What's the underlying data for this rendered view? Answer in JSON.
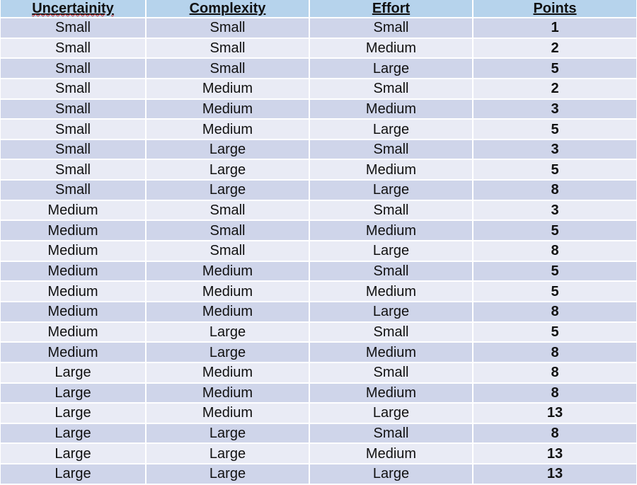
{
  "table": {
    "headers": [
      "Uncertainity",
      "Complexity",
      "Effort",
      "Points"
    ],
    "rows": [
      [
        "Small",
        "Small",
        "Small",
        "1"
      ],
      [
        "Small",
        "Small",
        "Medium",
        "2"
      ],
      [
        "Small",
        "Small",
        "Large",
        "5"
      ],
      [
        "Small",
        "Medium",
        "Small",
        "2"
      ],
      [
        "Small",
        "Medium",
        "Medium",
        "3"
      ],
      [
        "Small",
        "Medium",
        "Large",
        "5"
      ],
      [
        "Small",
        "Large",
        "Small",
        "3"
      ],
      [
        "Small",
        "Large",
        "Medium",
        "5"
      ],
      [
        "Small",
        "Large",
        "Large",
        "8"
      ],
      [
        "Medium",
        "Small",
        "Small",
        "3"
      ],
      [
        "Medium",
        "Small",
        "Medium",
        "5"
      ],
      [
        "Medium",
        "Small",
        "Large",
        "8"
      ],
      [
        "Medium",
        "Medium",
        "Small",
        "5"
      ],
      [
        "Medium",
        "Medium",
        "Medium",
        "5"
      ],
      [
        "Medium",
        "Medium",
        "Large",
        "8"
      ],
      [
        "Medium",
        "Large",
        "Small",
        "5"
      ],
      [
        "Medium",
        "Large",
        "Medium",
        "8"
      ],
      [
        "Large",
        "Medium",
        "Small",
        "8"
      ],
      [
        "Large",
        "Medium",
        "Medium",
        "8"
      ],
      [
        "Large",
        "Medium",
        "Large",
        "13"
      ],
      [
        "Large",
        "Large",
        "Small",
        "8"
      ],
      [
        "Large",
        "Large",
        "Medium",
        "13"
      ],
      [
        "Large",
        "Large",
        "Large",
        "13"
      ]
    ]
  },
  "colors": {
    "header_bg": "#b6d3ec",
    "row_dark": "#cfd5ea",
    "row_light": "#e9ebf5"
  }
}
